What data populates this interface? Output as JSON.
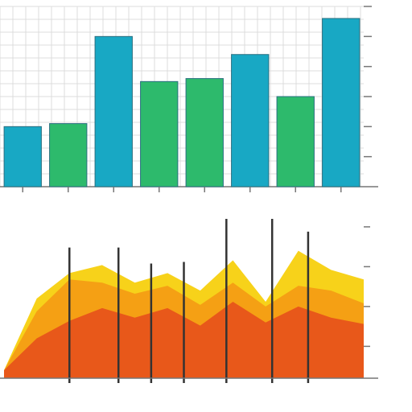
{
  "colors": {
    "teal": "#18a8c4",
    "green": "#2dba6c",
    "yellow": "#f7d21a",
    "orange": "#f5a014",
    "red_orange": "#e8581a",
    "grid": "#dcdcdc",
    "axis": "#777777",
    "marker": "#333333",
    "background": "#ffffff"
  },
  "chart_data": [
    {
      "type": "bar",
      "title": "",
      "xlabel": "",
      "ylabel": "",
      "grid": true,
      "categories": [
        "",
        "",
        "",
        "",
        "",
        "",
        "",
        ""
      ],
      "values": [
        20,
        21,
        50,
        35,
        36,
        44,
        30,
        56
      ],
      "bar_colors": [
        "teal",
        "green",
        "teal",
        "green",
        "green",
        "teal",
        "green",
        "teal"
      ],
      "ylim": [
        0,
        60
      ],
      "y_ticks": [
        {
          "value": 10,
          "label": ""
        },
        {
          "value": 20,
          "label": ""
        },
        {
          "value": 30,
          "label": ""
        },
        {
          "value": 40,
          "label": ""
        },
        {
          "value": 50,
          "label": ""
        },
        {
          "value": 60,
          "label": ""
        }
      ],
      "legend": "none"
    },
    {
      "type": "area",
      "title": "",
      "xlabel": "",
      "ylabel": "",
      "grid": false,
      "stacked": false,
      "x": [
        0,
        1,
        2,
        3,
        4,
        5,
        6,
        7,
        8,
        9,
        10,
        11
      ],
      "xlim": [
        0,
        11
      ],
      "ylim": [
        0,
        100
      ],
      "series": [
        {
          "color": "yellow",
          "values": [
            5,
            50,
            66,
            71,
            60,
            66,
            55,
            74,
            48,
            80,
            68,
            62
          ]
        },
        {
          "color": "orange",
          "values": [
            5,
            42,
            62,
            60,
            53,
            58,
            46,
            60,
            45,
            58,
            55,
            47
          ]
        },
        {
          "color": "red_orange",
          "values": [
            5,
            25,
            36,
            44,
            38,
            44,
            33,
            48,
            35,
            45,
            38,
            34
          ]
        }
      ],
      "markers_x": [
        2,
        3.5,
        4.5,
        5.5,
        6.8,
        8.2,
        9.3
      ],
      "markers_top": [
        82,
        82,
        72,
        73,
        100,
        100,
        92
      ],
      "x_ticks": [
        "",
        "",
        "",
        "",
        "",
        "",
        ""
      ],
      "y_ticks": [
        {
          "value": 95,
          "label": ""
        },
        {
          "value": 70,
          "label": ""
        },
        {
          "value": 45,
          "label": ""
        },
        {
          "value": 20,
          "label": ""
        }
      ],
      "legend": "none"
    }
  ]
}
